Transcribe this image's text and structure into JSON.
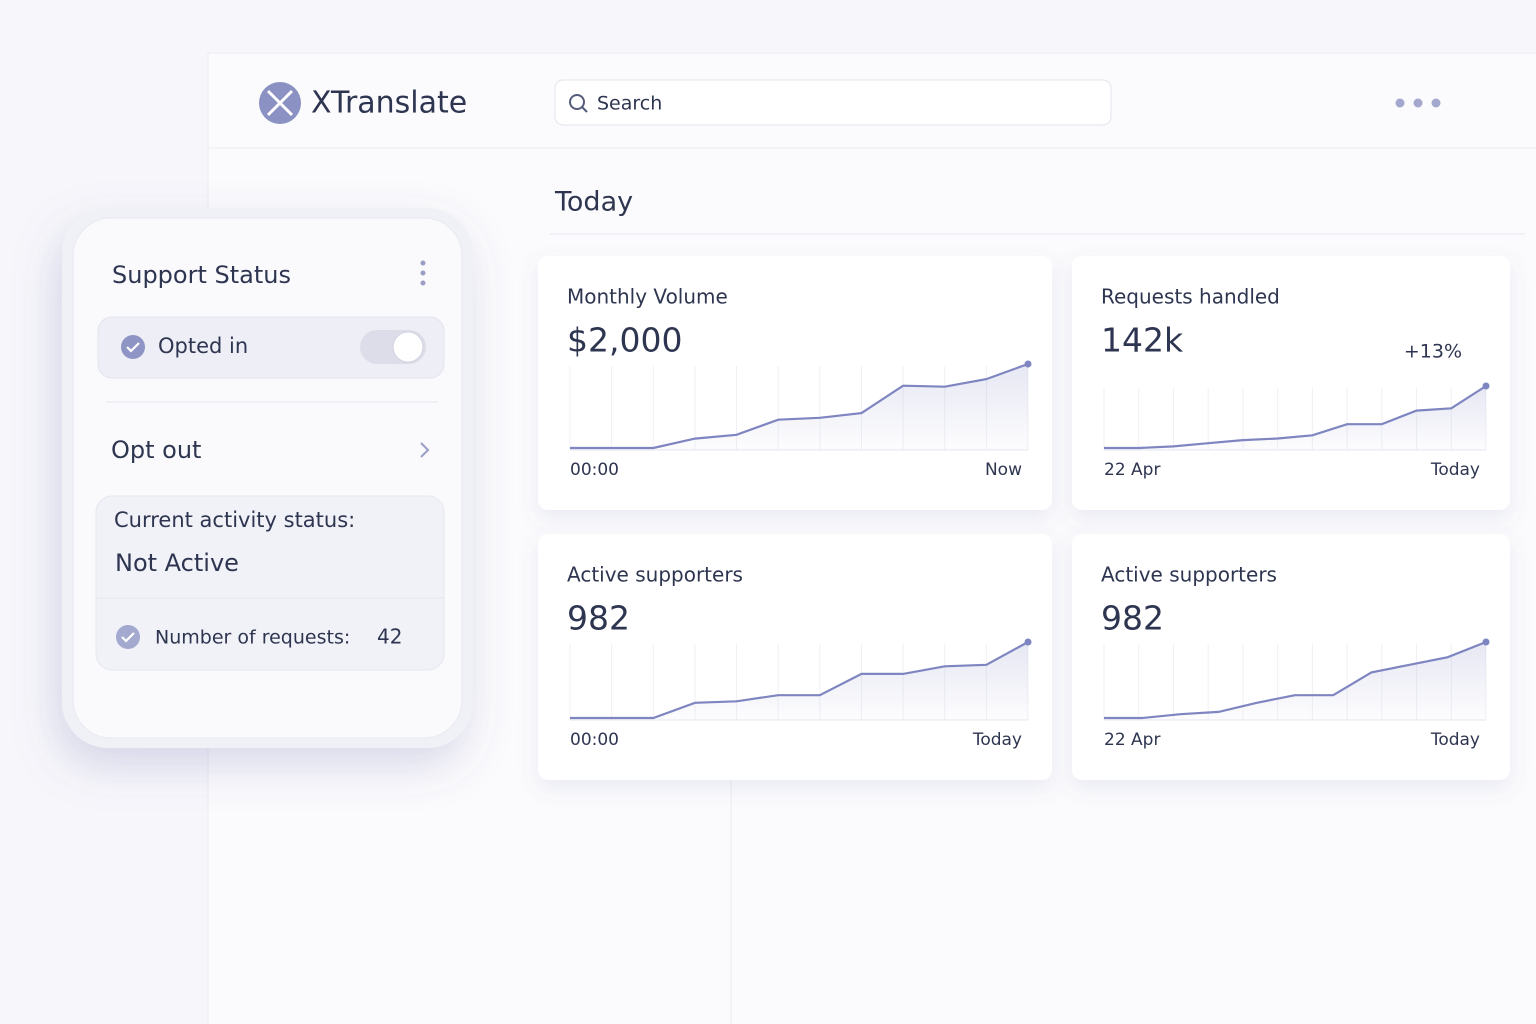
{
  "header": {
    "brand": "XTranslate",
    "search_placeholder": "Search"
  },
  "section_title": "Today",
  "support_panel": {
    "title": "Support Status",
    "toggle_label": "Opted in",
    "opt_out": "Opt out",
    "status_label": "Current activity status:",
    "status_value": "Not Active",
    "requests_label": "Number of requests:",
    "requests_value": 42
  },
  "cards": [
    {
      "title": "Monthly Volume",
      "value": "$2,000",
      "x_start": "00:00",
      "x_end": "Now",
      "trend": [
        0,
        0,
        0,
        10,
        14,
        30,
        32,
        37,
        66,
        65,
        73,
        89
      ]
    },
    {
      "title": "Requests handled",
      "value": "142k",
      "change": "+13%",
      "x_start": "22 Apr",
      "x_end": "Today",
      "trend": [
        0,
        0,
        2,
        6,
        10,
        12,
        16,
        30,
        30,
        47,
        50,
        78
      ]
    },
    {
      "title": "Active supporters",
      "value": "982",
      "x_start": "00:00",
      "x_end": "Today",
      "trend": [
        0,
        0,
        0,
        20,
        22,
        30,
        30,
        58,
        58,
        68,
        70,
        100
      ]
    },
    {
      "title": "Active supporters",
      "value": "982",
      "x_start": "22 Apr",
      "x_end": "Today",
      "trend": [
        0,
        0,
        5,
        8,
        20,
        30,
        30,
        60,
        70,
        80,
        100
      ]
    }
  ]
}
